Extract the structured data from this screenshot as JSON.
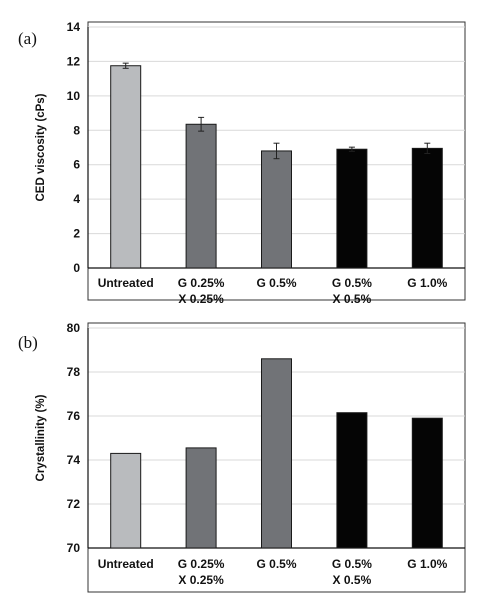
{
  "chart_data": [
    {
      "type": "bar",
      "panel_label": "(a)",
      "categories": [
        [
          "Untreated"
        ],
        [
          "G 0.25%",
          "X 0.25%"
        ],
        [
          "G 0.5%"
        ],
        [
          "G 0.5%",
          "X 0.5%"
        ],
        [
          "G 1.0%"
        ]
      ],
      "values": [
        11.75,
        8.35,
        6.8,
        6.9,
        6.95
      ],
      "errors": [
        0.15,
        0.4,
        0.45,
        0.12,
        0.3
      ],
      "colors": [
        "#b9bbbe",
        "#717377",
        "#717377",
        "#050505",
        "#050505"
      ],
      "title": "",
      "xlabel": "",
      "ylabel": "CED viscosity (cPs)",
      "ylim": [
        0,
        14
      ],
      "yticks": [
        0,
        2,
        4,
        6,
        8,
        10,
        12,
        14
      ],
      "grid": true,
      "legend": "none"
    },
    {
      "type": "bar",
      "panel_label": "(b)",
      "categories": [
        [
          "Untreated"
        ],
        [
          "G 0.25%",
          "X 0.25%"
        ],
        [
          "G 0.5%"
        ],
        [
          "G 0.5%",
          "X 0.5%"
        ],
        [
          "G 1.0%"
        ]
      ],
      "values": [
        74.3,
        74.55,
        78.6,
        76.15,
        75.9
      ],
      "colors": [
        "#b9bbbe",
        "#717377",
        "#717377",
        "#050505",
        "#050505"
      ],
      "title": "",
      "xlabel": "",
      "ylabel": "Crystallinity (%)",
      "ylim": [
        70,
        80
      ],
      "yticks": [
        70,
        72,
        74,
        76,
        78,
        80
      ],
      "grid": true,
      "legend": "none"
    }
  ]
}
